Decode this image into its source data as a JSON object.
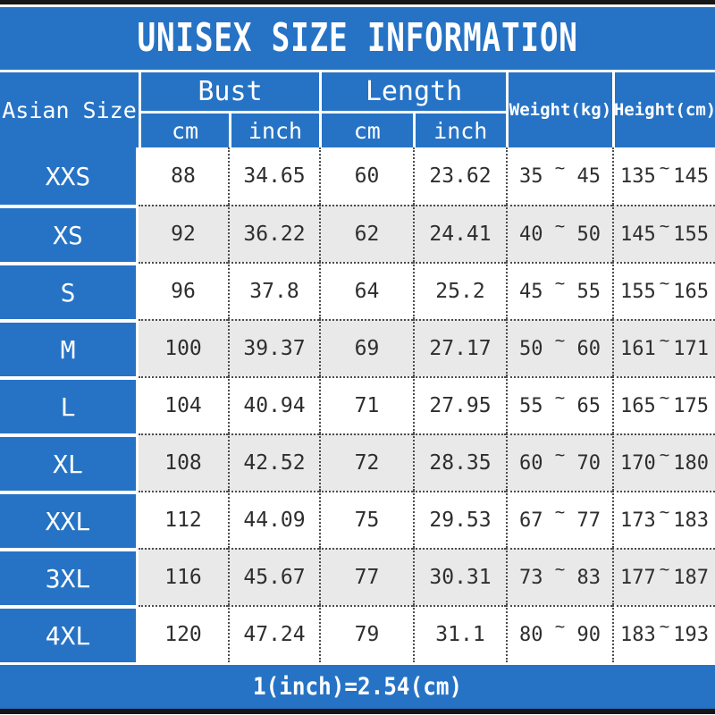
{
  "title": "UNISEX SIZE INFORMATION",
  "footer_note": "1(inch)=2.54(cm)",
  "colors": {
    "blue": "#2673c5",
    "stripe": "#e9e9e9",
    "bar": "#161616",
    "ink": "#2e2e2e",
    "dash": "#4c4c4c",
    "header_text": "#ffffff"
  },
  "table": {
    "corner": "Asian Size",
    "bust": {
      "label": "Bust",
      "sub": [
        "cm",
        "inch"
      ]
    },
    "length": {
      "label": "Length",
      "sub": [
        "cm",
        "inch"
      ]
    },
    "weight": "Weight(kg)",
    "height": "Height(cm)",
    "tilde": "~",
    "rows": [
      {
        "size": "XXS",
        "bust_cm": "88",
        "bust_in": "34.65",
        "len_cm": "60",
        "len_in": "23.62",
        "wt_min": "35",
        "wt_max": "45",
        "ht_min": "135",
        "ht_max": "145"
      },
      {
        "size": "XS",
        "bust_cm": "92",
        "bust_in": "36.22",
        "len_cm": "62",
        "len_in": "24.41",
        "wt_min": "40",
        "wt_max": "50",
        "ht_min": "145",
        "ht_max": "155"
      },
      {
        "size": "S",
        "bust_cm": "96",
        "bust_in": "37.8",
        "len_cm": "64",
        "len_in": "25.2",
        "wt_min": "45",
        "wt_max": "55",
        "ht_min": "155",
        "ht_max": "165"
      },
      {
        "size": "M",
        "bust_cm": "100",
        "bust_in": "39.37",
        "len_cm": "69",
        "len_in": "27.17",
        "wt_min": "50",
        "wt_max": "60",
        "ht_min": "161",
        "ht_max": "171"
      },
      {
        "size": "L",
        "bust_cm": "104",
        "bust_in": "40.94",
        "len_cm": "71",
        "len_in": "27.95",
        "wt_min": "55",
        "wt_max": "65",
        "ht_min": "165",
        "ht_max": "175"
      },
      {
        "size": "XL",
        "bust_cm": "108",
        "bust_in": "42.52",
        "len_cm": "72",
        "len_in": "28.35",
        "wt_min": "60",
        "wt_max": "70",
        "ht_min": "170",
        "ht_max": "180"
      },
      {
        "size": "XXL",
        "bust_cm": "112",
        "bust_in": "44.09",
        "len_cm": "75",
        "len_in": "29.53",
        "wt_min": "67",
        "wt_max": "77",
        "ht_min": "173",
        "ht_max": "183"
      },
      {
        "size": "3XL",
        "bust_cm": "116",
        "bust_in": "45.67",
        "len_cm": "77",
        "len_in": "30.31",
        "wt_min": "73",
        "wt_max": "83",
        "ht_min": "177",
        "ht_max": "187"
      },
      {
        "size": "4XL",
        "bust_cm": "120",
        "bust_in": "47.24",
        "len_cm": "79",
        "len_in": "31.1",
        "wt_min": "80",
        "wt_max": "90",
        "ht_min": "183",
        "ht_max": "193"
      }
    ]
  }
}
